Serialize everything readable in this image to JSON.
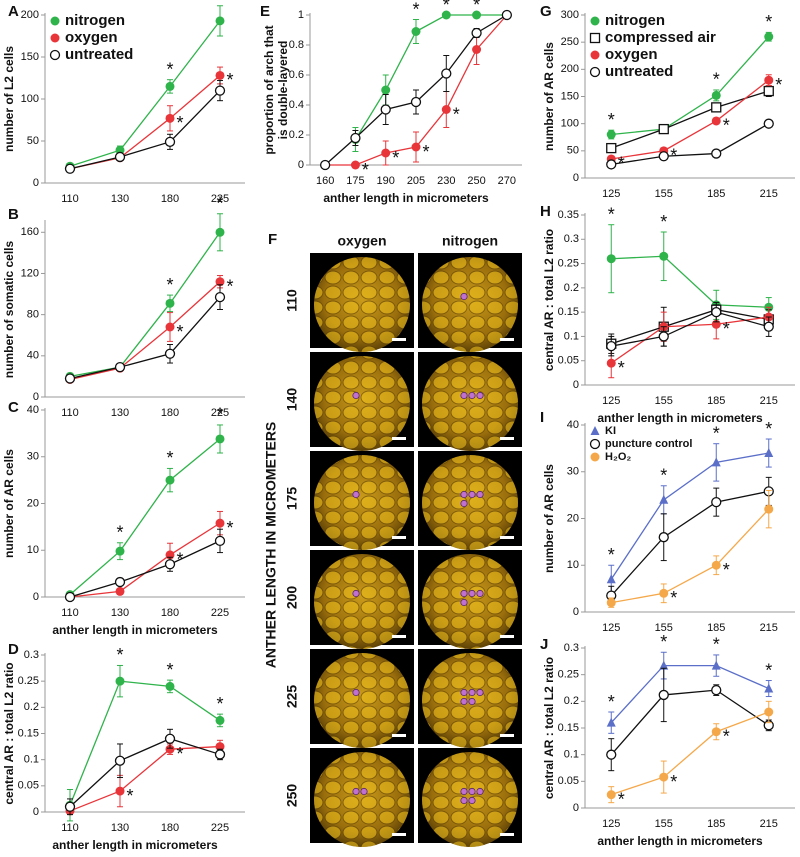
{
  "chart_data": [
    {
      "label": "A",
      "type": "line",
      "categories": [
        "110",
        "130",
        "180",
        "225"
      ],
      "ylim": [
        0,
        200
      ],
      "yticks": [
        0,
        50,
        100,
        150,
        200
      ],
      "ylabel": "number of L2 cells",
      "legend": "upper-left",
      "series": [
        {
          "name": "nitrogen",
          "color": "#2fb34b",
          "marker": "circle",
          "values": [
            20,
            39,
            115,
            193
          ],
          "errors": [
            3,
            5,
            8,
            18
          ],
          "annotations": [
            null,
            null,
            "*",
            "*"
          ]
        },
        {
          "name": "oxygen",
          "color": "#e8353a",
          "marker": "circle",
          "values": [
            17,
            30,
            77,
            128
          ],
          "errors": [
            2,
            3,
            15,
            10
          ],
          "annotations": [
            null,
            null,
            "*",
            "*"
          ]
        },
        {
          "name": "untreated",
          "color": "#111111",
          "marker": "open-circle",
          "values": [
            17,
            31,
            49,
            110
          ],
          "errors": [
            2,
            3,
            9,
            12
          ],
          "annotations": [
            null,
            null,
            null,
            null
          ]
        }
      ]
    },
    {
      "label": "B",
      "type": "line",
      "categories": [
        "110",
        "130",
        "180",
        "225"
      ],
      "ylim": [
        0,
        170
      ],
      "yticks": [
        0,
        40,
        80,
        120,
        160
      ],
      "ylabel": "number of somatic cells",
      "series": [
        {
          "color": "#2fb34b",
          "marker": "circle",
          "values": [
            20,
            29,
            91,
            160
          ],
          "errors": [
            3,
            3,
            8,
            18
          ],
          "annotations": [
            null,
            null,
            "*",
            "*"
          ]
        },
        {
          "color": "#e8353a",
          "marker": "circle",
          "values": [
            17,
            28,
            68,
            112
          ],
          "errors": [
            2,
            3,
            14,
            6
          ],
          "annotations": [
            null,
            null,
            "*",
            "*"
          ]
        },
        {
          "color": "#111111",
          "marker": "open-circle",
          "values": [
            18,
            29,
            42,
            97
          ],
          "errors": [
            2,
            3,
            9,
            12
          ],
          "annotations": [
            null,
            null,
            null,
            null
          ]
        }
      ]
    },
    {
      "label": "C",
      "type": "line",
      "categories": [
        "110",
        "130",
        "180",
        "225"
      ],
      "ylim": [
        0,
        40
      ],
      "yticks": [
        0,
        10,
        20,
        30,
        40
      ],
      "ylabel": "number of AR cells",
      "xlabel": "anther length in micrometers",
      "series": [
        {
          "color": "#2fb34b",
          "marker": "circle",
          "values": [
            0.5,
            9.8,
            25,
            33.8
          ],
          "errors": [
            0.5,
            1.8,
            2.5,
            3
          ],
          "annotations": [
            null,
            "*",
            "*",
            "*"
          ]
        },
        {
          "color": "#e8353a",
          "marker": "circle",
          "values": [
            0,
            1.2,
            9,
            15.8
          ],
          "errors": [
            0,
            0.5,
            2.5,
            2.5
          ],
          "annotations": [
            null,
            null,
            "*",
            "*"
          ]
        },
        {
          "color": "#111111",
          "marker": "open-circle",
          "values": [
            0,
            3.2,
            7,
            12
          ],
          "errors": [
            0.3,
            0.8,
            1.5,
            2.5
          ],
          "annotations": [
            null,
            null,
            null,
            null
          ]
        }
      ]
    },
    {
      "label": "D",
      "type": "line",
      "categories": [
        "110",
        "130",
        "180",
        "225"
      ],
      "ylim": [
        0,
        0.3
      ],
      "yticks": [
        0,
        0.05,
        0.1,
        0.15,
        0.2,
        0.25,
        0.3
      ],
      "ylabel": "central AR : total L2 ratio",
      "xlabel": "anther length in micrometers",
      "series": [
        {
          "color": "#2fb34b",
          "marker": "circle",
          "values": [
            0.013,
            0.25,
            0.24,
            0.175
          ],
          "errors": [
            0.03,
            0.03,
            0.012,
            0.012
          ],
          "annotations": [
            null,
            "*",
            "*",
            "*"
          ]
        },
        {
          "color": "#e8353a",
          "marker": "circle",
          "values": [
            0.002,
            0.04,
            0.12,
            0.125
          ],
          "errors": [
            0.003,
            0.03,
            0.01,
            0.012
          ],
          "annotations": [
            null,
            "*",
            "*",
            null
          ]
        },
        {
          "color": "#111111",
          "marker": "open-circle",
          "values": [
            0.01,
            0.098,
            0.14,
            0.11
          ],
          "errors": [
            0.015,
            0.032,
            0.018,
            0.01
          ],
          "annotations": [
            null,
            null,
            null,
            null
          ]
        }
      ]
    },
    {
      "label": "E",
      "type": "line",
      "categories": [
        "160",
        "175",
        "190",
        "205",
        "230",
        "250",
        "270"
      ],
      "ylim": [
        0,
        1
      ],
      "yticks": [
        0,
        0.2,
        0.4,
        0.6,
        0.8,
        1
      ],
      "ylabel": [
        "proportion of arch that",
        "is double-layered"
      ],
      "xlabel": "anther length in micrometers",
      "series": [
        {
          "color": "#2fb34b",
          "marker": "circle",
          "values": [
            null,
            0.17,
            0.5,
            0.89,
            1,
            1,
            1
          ],
          "errors": [
            null,
            0.08,
            0.1,
            0.08,
            0,
            0,
            0
          ],
          "annotations": [
            null,
            null,
            null,
            "*",
            "*",
            "*",
            null
          ]
        },
        {
          "color": "#e8353a",
          "marker": "circle",
          "values": [
            0,
            0,
            0.08,
            0.12,
            0.37,
            0.77,
            1
          ],
          "errors": [
            0,
            0,
            0.08,
            0.1,
            0.12,
            0.1,
            0
          ],
          "annotations": [
            null,
            "*",
            "*",
            "*",
            "*",
            null,
            null
          ]
        },
        {
          "color": "#111111",
          "marker": "open-circle",
          "values": [
            0,
            0.18,
            0.37,
            0.42,
            0.61,
            0.88,
            1
          ],
          "errors": [
            0,
            0.05,
            0.1,
            0.08,
            0.12,
            0.03,
            0
          ],
          "annotations": [
            null,
            null,
            null,
            null,
            null,
            null,
            null
          ]
        }
      ]
    },
    {
      "label": "G",
      "type": "line",
      "categories": [
        "125",
        "155",
        "185",
        "215"
      ],
      "ylim": [
        0,
        300
      ],
      "yticks": [
        0,
        50,
        100,
        150,
        200,
        250,
        300
      ],
      "ylabel": "number of AR cells",
      "legend": "upper-left",
      "series": [
        {
          "name": "nitrogen",
          "color": "#2fb34b",
          "marker": "circle",
          "values": [
            80,
            90,
            152,
            260
          ],
          "errors": [
            8,
            5,
            10,
            8
          ],
          "annotations": [
            "*",
            null,
            "*",
            "*"
          ]
        },
        {
          "name": "compressed air",
          "color": "#111111",
          "marker": "open-square",
          "values": [
            55,
            90,
            130,
            160
          ],
          "errors": [
            5,
            5,
            8,
            10
          ],
          "annotations": [
            null,
            null,
            null,
            null
          ]
        },
        {
          "name": "oxygen",
          "color": "#e8353a",
          "marker": "circle",
          "values": [
            35,
            50,
            105,
            180
          ],
          "errors": [
            4,
            5,
            5,
            10
          ],
          "annotations": [
            "*",
            "*",
            "*",
            "*"
          ]
        },
        {
          "name": "untreated",
          "color": "#111111",
          "marker": "open-circle",
          "values": [
            25,
            40,
            45,
            100
          ],
          "errors": [
            3,
            3,
            3,
            5
          ],
          "annotations": [
            null,
            null,
            null,
            null
          ]
        }
      ]
    },
    {
      "label": "H",
      "type": "line",
      "categories": [
        "125",
        "155",
        "185",
        "215"
      ],
      "ylim": [
        0,
        0.35
      ],
      "yticks": [
        0,
        0.05,
        0.1,
        0.15,
        0.2,
        0.25,
        0.3,
        0.35
      ],
      "ylabel": "central AR : total L2 ratio",
      "xlabel": "anther length in micrometers",
      "series": [
        {
          "color": "#2fb34b",
          "marker": "circle",
          "values": [
            0.26,
            0.265,
            0.165,
            0.16
          ],
          "errors": [
            0.07,
            0.05,
            0.03,
            0.02
          ],
          "annotations": [
            "*",
            "*",
            null,
            null
          ]
        },
        {
          "color": "#111111",
          "marker": "open-square",
          "values": [
            0.085,
            0.12,
            0.155,
            0.135
          ],
          "errors": [
            0.02,
            0.04,
            0.01,
            0.02
          ],
          "annotations": [
            null,
            null,
            null,
            null
          ]
        },
        {
          "color": "#e8353a",
          "marker": "circle",
          "values": [
            0.045,
            0.12,
            0.125,
            0.14
          ],
          "errors": [
            0.03,
            0.03,
            0.03,
            0.02
          ],
          "annotations": [
            "*",
            null,
            "*",
            null
          ]
        },
        {
          "color": "#111111",
          "marker": "open-circle",
          "values": [
            0.08,
            0.1,
            0.15,
            0.12
          ],
          "errors": [
            0.02,
            0.02,
            0.02,
            0.02
          ],
          "annotations": [
            null,
            null,
            null,
            null
          ]
        }
      ]
    },
    {
      "label": "I",
      "type": "line",
      "categories": [
        "125",
        "155",
        "185",
        "215"
      ],
      "ylim": [
        0,
        40
      ],
      "yticks": [
        0,
        10,
        20,
        30,
        40
      ],
      "ylabel": "number of AR cells",
      "legend": "upper-left",
      "series": [
        {
          "name": "KI",
          "color": "#5b6fc9",
          "marker": "triangle",
          "values": [
            7,
            24,
            32,
            34
          ],
          "errors": [
            3,
            3,
            4,
            3
          ],
          "annotations": [
            "*",
            "*",
            "*",
            "*"
          ]
        },
        {
          "name": "puncture control",
          "color": "#111111",
          "marker": "open-circle",
          "values": [
            3.5,
            16,
            23.5,
            25.8
          ],
          "errors": [
            2,
            5,
            3,
            3
          ],
          "annotations": [
            null,
            null,
            null,
            null
          ]
        },
        {
          "name": "H₂O₂",
          "color": "#f5a84a",
          "marker": "circle",
          "values": [
            2,
            4,
            10,
            22
          ],
          "errors": [
            1,
            2,
            2,
            4
          ],
          "annotations": [
            null,
            "*",
            "*",
            null
          ]
        }
      ]
    },
    {
      "label": "J",
      "type": "line",
      "categories": [
        "125",
        "155",
        "185",
        "215"
      ],
      "ylim": [
        0,
        0.3
      ],
      "yticks": [
        0,
        0.05,
        0.1,
        0.15,
        0.2,
        0.25,
        0.3
      ],
      "ylabel": "central AR : total L2 ratio",
      "xlabel": "anther length in micrometers",
      "series": [
        {
          "color": "#5b6fc9",
          "marker": "triangle",
          "values": [
            0.16,
            0.267,
            0.267,
            0.224
          ],
          "errors": [
            0.02,
            0.025,
            0.02,
            0.015
          ],
          "annotations": [
            "*",
            "*",
            "*",
            "*"
          ]
        },
        {
          "color": "#111111",
          "marker": "open-circle",
          "values": [
            0.1,
            0.212,
            0.221,
            0.155
          ],
          "errors": [
            0.03,
            0.05,
            0.01,
            0.01
          ],
          "annotations": [
            null,
            null,
            null,
            null
          ]
        },
        {
          "color": "#f5a84a",
          "marker": "circle",
          "values": [
            0.025,
            0.058,
            0.143,
            0.18
          ],
          "errors": [
            0.015,
            0.03,
            0.015,
            0.02
          ],
          "annotations": [
            "*",
            "*",
            "*",
            null
          ]
        }
      ]
    }
  ],
  "image_panel": {
    "label": "F",
    "columns": [
      "oxygen",
      "nitrogen"
    ],
    "row_labels": [
      "110",
      "140",
      "175",
      "200",
      "225",
      "250"
    ],
    "axis_label": "ANTHER LENGTH IN MICROMETERS"
  }
}
